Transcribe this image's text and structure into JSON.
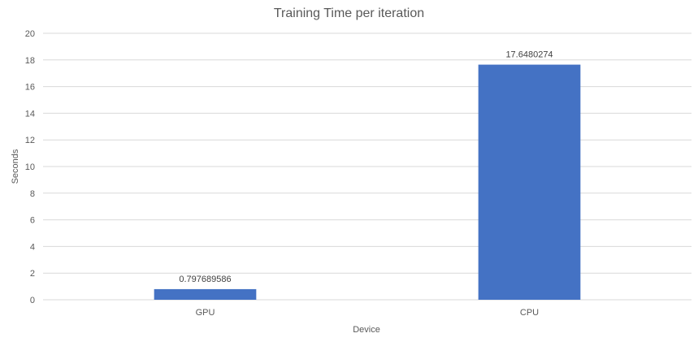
{
  "chart_data": {
    "type": "bar",
    "title": "Training Time per iteration",
    "xlabel": "Device",
    "ylabel": "Seconds",
    "categories": [
      "GPU",
      "CPU"
    ],
    "values": [
      0.797689586,
      17.6480274
    ],
    "data_labels": [
      "0.797689586",
      "17.6480274"
    ],
    "ylim": [
      0,
      20
    ],
    "yticks": [
      0,
      2,
      4,
      6,
      8,
      10,
      12,
      14,
      16,
      18,
      20
    ],
    "grid": true,
    "legend": "none",
    "bar_color": "#4472C4"
  }
}
